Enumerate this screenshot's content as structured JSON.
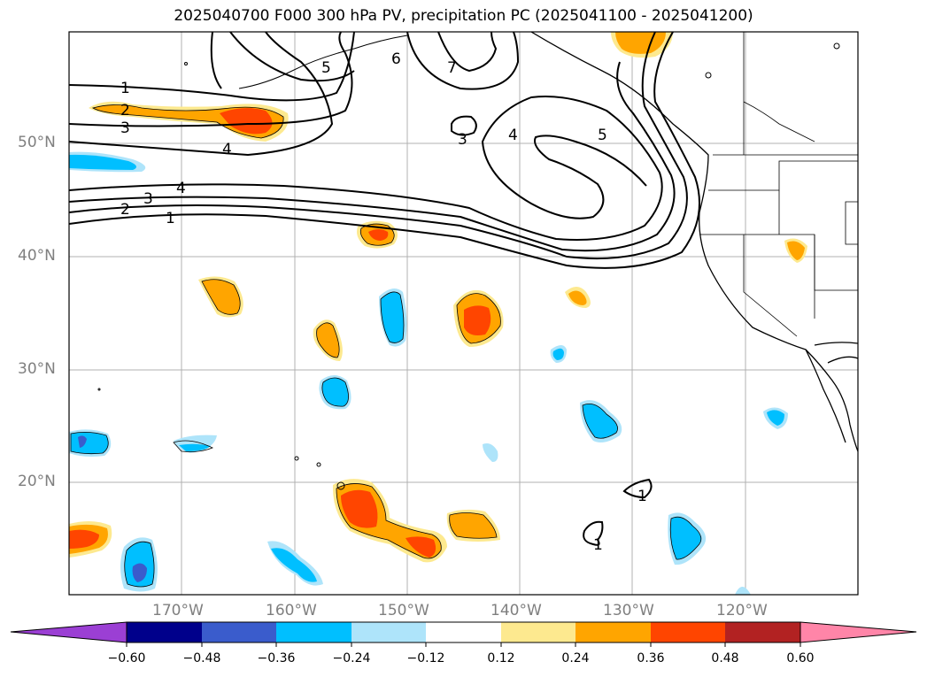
{
  "title": "2025040700 F000 300 hPa PV, precipitation PC (2025041100 - 2025041200)",
  "lat_labels": [
    "50°N",
    "40°N",
    "30°N",
    "20°N"
  ],
  "lon_labels": [
    "170°W",
    "160°W",
    "150°W",
    "140°W",
    "130°W",
    "120°W"
  ],
  "contour_labels": [
    "1",
    "2",
    "3",
    "4",
    "5",
    "6",
    "7",
    "1",
    "2",
    "3",
    "4",
    "3",
    "4",
    "5",
    "1",
    "1"
  ],
  "colorbar": {
    "ticks": [
      "−0.60",
      "−0.48",
      "−0.36",
      "−0.24",
      "−0.12",
      "0.12",
      "0.24",
      "0.36",
      "0.48",
      "0.60"
    ],
    "colors": [
      "#9b3fd4",
      "#00008b",
      "#3a5ccc",
      "#00bfff",
      "#aee4fa",
      "#ffffff",
      "#fde98f",
      "#ffa500",
      "#ff4500",
      "#b22222",
      "#ff85a8"
    ]
  }
}
